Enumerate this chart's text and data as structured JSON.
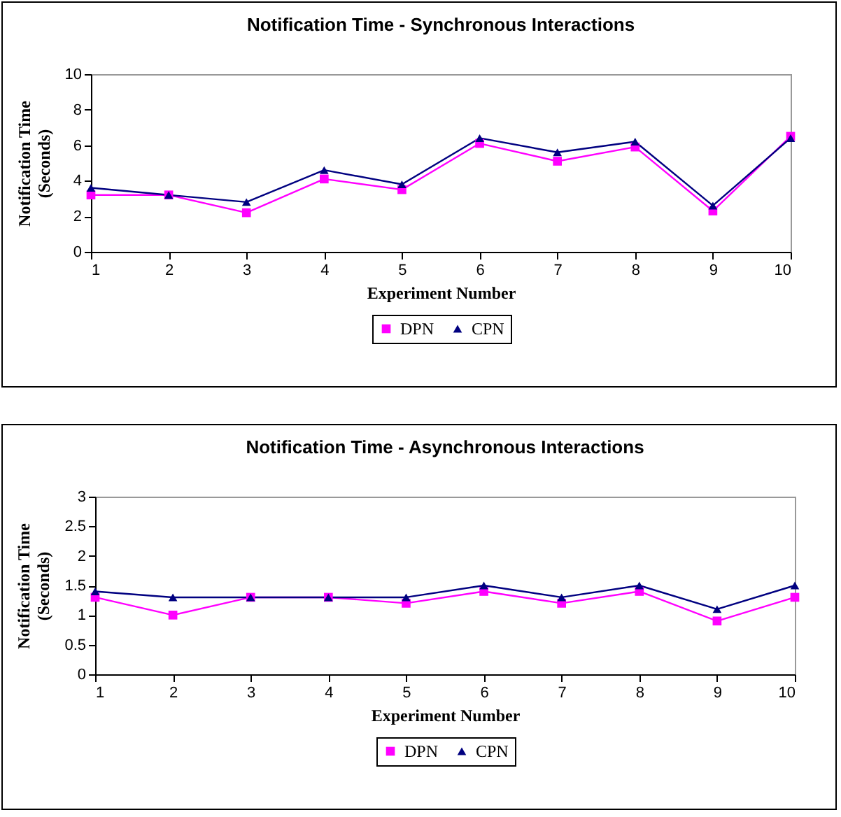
{
  "chart_data": [
    {
      "type": "line",
      "title": "Notification Time - Synchronous Interactions",
      "xlabel": "Experiment Number",
      "ylabel": "Notification Time (Seconds)",
      "x": [
        1,
        2,
        3,
        4,
        5,
        6,
        7,
        8,
        9,
        10
      ],
      "xlim": [
        1,
        10
      ],
      "xticks": [
        1,
        2,
        3,
        4,
        5,
        6,
        7,
        8,
        9,
        10
      ],
      "ylim": [
        0,
        10
      ],
      "yticks": [
        0,
        2,
        4,
        6,
        8,
        10
      ],
      "grid": false,
      "legend": "bottom",
      "line_style": "solid",
      "series": [
        {
          "name": "DPN",
          "color": "#ff00ff",
          "marker": "square",
          "values": [
            3.2,
            3.2,
            2.2,
            4.1,
            3.5,
            6.1,
            5.1,
            5.9,
            2.3,
            6.5
          ]
        },
        {
          "name": "CPN",
          "color": "#000080",
          "marker": "triangle",
          "values": [
            3.6,
            3.2,
            2.8,
            4.6,
            3.8,
            6.4,
            5.6,
            6.2,
            2.6,
            6.4
          ]
        }
      ]
    },
    {
      "type": "line",
      "title": "Notification Time - Asynchronous Interactions",
      "xlabel": "Experiment Number",
      "ylabel": "Notification Time (Seconds)",
      "x": [
        1,
        2,
        3,
        4,
        5,
        6,
        7,
        8,
        9,
        10
      ],
      "xlim": [
        1,
        10
      ],
      "xticks": [
        1,
        2,
        3,
        4,
        5,
        6,
        7,
        8,
        9,
        10
      ],
      "ylim": [
        0,
        3
      ],
      "yticks": [
        0,
        0.5,
        1,
        1.5,
        2,
        2.5,
        3
      ],
      "grid": false,
      "legend": "bottom",
      "line_style": "solid",
      "series": [
        {
          "name": "DPN",
          "color": "#ff00ff",
          "marker": "square",
          "values": [
            1.3,
            1.0,
            1.3,
            1.3,
            1.2,
            1.4,
            1.2,
            1.4,
            0.9,
            1.3
          ]
        },
        {
          "name": "CPN",
          "color": "#000080",
          "marker": "triangle",
          "values": [
            1.4,
            1.3,
            1.3,
            1.3,
            1.3,
            1.5,
            1.3,
            1.5,
            1.1,
            1.5
          ]
        }
      ]
    }
  ]
}
